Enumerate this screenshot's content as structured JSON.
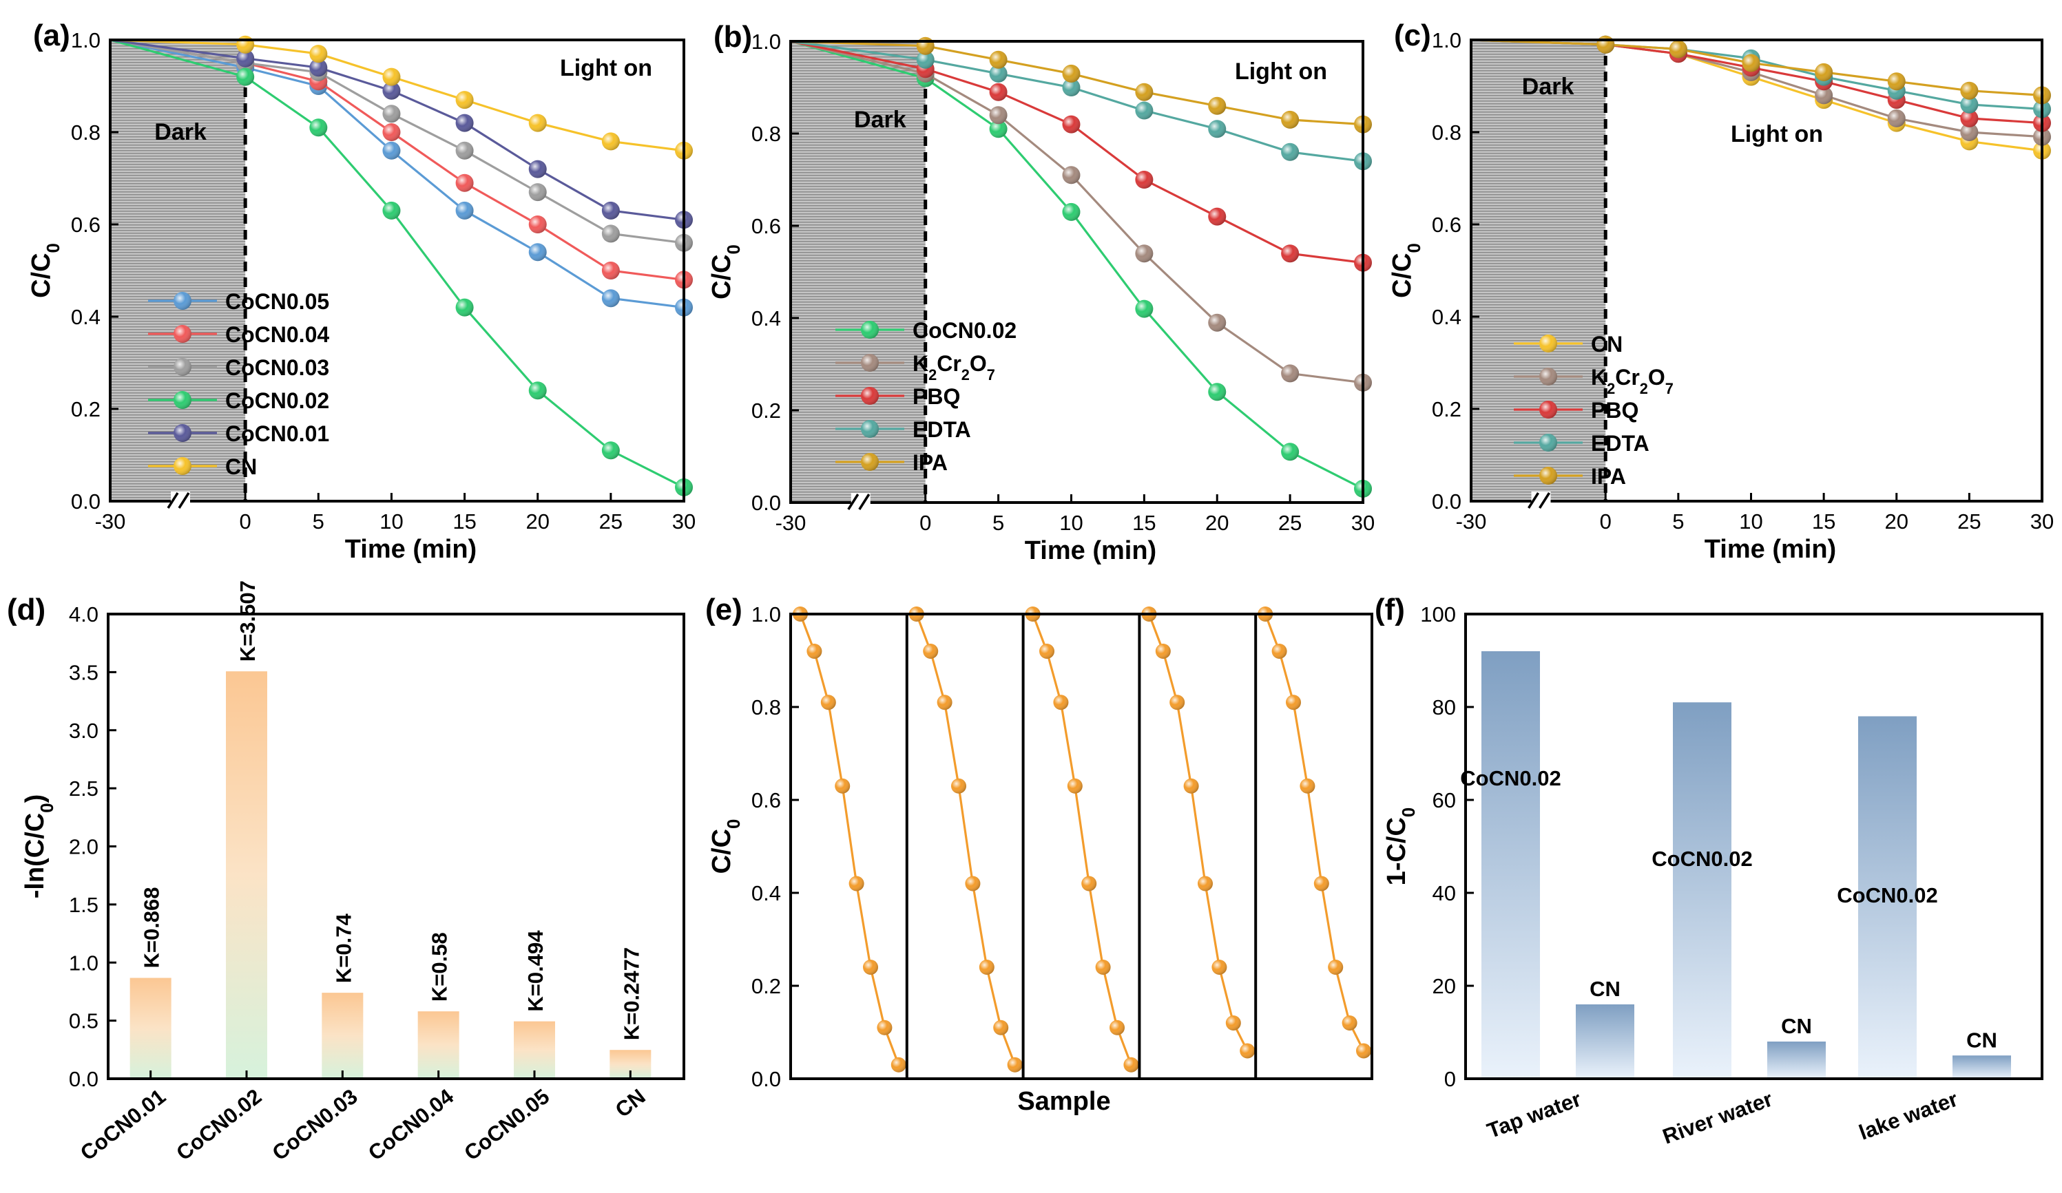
{
  "colors": {
    "CoCN0.05": "#5b9bd5",
    "CoCN0.04": "#f05a5a",
    "CoCN0.03": "#9e9e9e",
    "CoCN0.02": "#2ecc71",
    "CoCN0.01": "#5a5a9a",
    "CN": "#f6c22a",
    "K2Cr2O7": "#a48a7e",
    "PBQ": "#d93a3a",
    "EDTA": "#54a8a0",
    "IPA": "#d4a020",
    "orange": "#f39c2c",
    "dark": "#b0b0b0"
  },
  "chart_data": [
    {
      "id": "a",
      "type": "line",
      "panel_label": "(a)",
      "xlabel": "Time (min)",
      "ylabel": "C/C0",
      "ylim": [
        0,
        1.0
      ],
      "x_ticks": [
        "-30",
        "0",
        "5",
        "10",
        "15",
        "20",
        "25",
        "30"
      ],
      "y_ticks": [
        "0.0",
        "0.2",
        "0.4",
        "0.6",
        "0.8",
        "1.0"
      ],
      "dark_label": "Dark",
      "light_label": "Light on",
      "series": [
        {
          "name": "CoCN0.05",
          "key": "CoCN0.05",
          "x": [
            -30,
            0,
            5,
            10,
            15,
            20,
            25,
            30
          ],
          "values": [
            1.0,
            0.94,
            0.9,
            0.76,
            0.63,
            0.54,
            0.44,
            0.42
          ]
        },
        {
          "name": "CoCN0.04",
          "key": "CoCN0.04",
          "x": [
            -30,
            0,
            5,
            10,
            15,
            20,
            25,
            30
          ],
          "values": [
            1.0,
            0.95,
            0.91,
            0.8,
            0.69,
            0.6,
            0.5,
            0.48
          ]
        },
        {
          "name": "CoCN0.03",
          "key": "CoCN0.03",
          "x": [
            -30,
            0,
            5,
            10,
            15,
            20,
            25,
            30
          ],
          "values": [
            1.0,
            0.95,
            0.93,
            0.84,
            0.76,
            0.67,
            0.58,
            0.56
          ]
        },
        {
          "name": "CoCN0.02",
          "key": "CoCN0.02",
          "x": [
            -30,
            0,
            5,
            10,
            15,
            20,
            25,
            30
          ],
          "values": [
            1.0,
            0.92,
            0.81,
            0.63,
            0.42,
            0.24,
            0.11,
            0.03
          ]
        },
        {
          "name": "CoCN0.01",
          "key": "CoCN0.01",
          "x": [
            -30,
            0,
            5,
            10,
            15,
            20,
            25,
            30
          ],
          "values": [
            1.0,
            0.96,
            0.94,
            0.89,
            0.82,
            0.72,
            0.63,
            0.61
          ]
        },
        {
          "name": "CN",
          "key": "CN",
          "x": [
            -30,
            0,
            5,
            10,
            15,
            20,
            25,
            30
          ],
          "values": [
            1.0,
            0.99,
            0.97,
            0.92,
            0.87,
            0.82,
            0.78,
            0.76
          ]
        }
      ]
    },
    {
      "id": "b",
      "type": "line",
      "panel_label": "(b)",
      "xlabel": "Time (min)",
      "ylabel": "C/C0",
      "ylim": [
        0,
        1.0
      ],
      "x_ticks": [
        "-30",
        "0",
        "5",
        "10",
        "15",
        "20",
        "25",
        "30"
      ],
      "y_ticks": [
        "0.0",
        "0.2",
        "0.4",
        "0.6",
        "0.8",
        "1.0"
      ],
      "dark_label": "Dark",
      "light_label": "Light on",
      "series": [
        {
          "name": "CoCN0.02",
          "key": "CoCN0.02",
          "x": [
            -30,
            0,
            5,
            10,
            15,
            20,
            25,
            30
          ],
          "values": [
            1.0,
            0.92,
            0.81,
            0.63,
            0.42,
            0.24,
            0.11,
            0.03
          ]
        },
        {
          "name": "K2Cr2O7",
          "key": "K2Cr2O7",
          "x": [
            -30,
            0,
            5,
            10,
            15,
            20,
            25,
            30
          ],
          "values": [
            1.0,
            0.93,
            0.84,
            0.71,
            0.54,
            0.39,
            0.28,
            0.26
          ]
        },
        {
          "name": "PBQ",
          "key": "PBQ",
          "x": [
            -30,
            0,
            5,
            10,
            15,
            20,
            25,
            30
          ],
          "values": [
            1.0,
            0.94,
            0.89,
            0.82,
            0.7,
            0.62,
            0.54,
            0.52
          ]
        },
        {
          "name": "EDTA",
          "key": "EDTA",
          "x": [
            -30,
            0,
            5,
            10,
            15,
            20,
            25,
            30
          ],
          "values": [
            1.0,
            0.96,
            0.93,
            0.9,
            0.85,
            0.81,
            0.76,
            0.74
          ]
        },
        {
          "name": "IPA",
          "key": "IPA",
          "x": [
            -30,
            0,
            5,
            10,
            15,
            20,
            25,
            30
          ],
          "values": [
            1.0,
            0.99,
            0.96,
            0.93,
            0.89,
            0.86,
            0.83,
            0.82
          ]
        }
      ]
    },
    {
      "id": "c",
      "type": "line",
      "panel_label": "(c)",
      "xlabel": "Time (min)",
      "ylabel": "C/C0",
      "ylim": [
        0,
        1.0
      ],
      "x_ticks": [
        "-30",
        "0",
        "5",
        "10",
        "15",
        "20",
        "25",
        "30"
      ],
      "y_ticks": [
        "0.0",
        "0.2",
        "0.4",
        "0.6",
        "0.8",
        "1.0"
      ],
      "dark_label": "Dark",
      "light_label": "Light on",
      "series": [
        {
          "name": "CN",
          "key": "CN",
          "x": [
            -30,
            0,
            5,
            10,
            15,
            20,
            25,
            30
          ],
          "values": [
            1.0,
            0.99,
            0.97,
            0.92,
            0.87,
            0.82,
            0.78,
            0.76
          ]
        },
        {
          "name": "K2Cr2O7",
          "key": "K2Cr2O7",
          "x": [
            -30,
            0,
            5,
            10,
            15,
            20,
            25,
            30
          ],
          "values": [
            1.0,
            0.99,
            0.97,
            0.93,
            0.88,
            0.83,
            0.8,
            0.79
          ]
        },
        {
          "name": "PBQ",
          "key": "PBQ",
          "x": [
            -30,
            0,
            5,
            10,
            15,
            20,
            25,
            30
          ],
          "values": [
            1.0,
            0.99,
            0.97,
            0.94,
            0.91,
            0.87,
            0.83,
            0.82
          ]
        },
        {
          "name": "EDTA",
          "key": "EDTA",
          "x": [
            -30,
            0,
            5,
            10,
            15,
            20,
            25,
            30
          ],
          "values": [
            1.0,
            0.99,
            0.98,
            0.96,
            0.92,
            0.89,
            0.86,
            0.85
          ]
        },
        {
          "name": "IPA",
          "key": "IPA",
          "x": [
            -30,
            0,
            5,
            10,
            15,
            20,
            25,
            30
          ],
          "values": [
            1.0,
            0.99,
            0.98,
            0.95,
            0.93,
            0.91,
            0.89,
            0.88
          ]
        }
      ]
    },
    {
      "id": "d",
      "type": "bar",
      "panel_label": "(d)",
      "xlabel": "",
      "ylabel": "-ln(C/C0)",
      "ylim": [
        0,
        4.0
      ],
      "y_ticks": [
        "0.0",
        "0.5",
        "1.0",
        "1.5",
        "2.0",
        "2.5",
        "3.0",
        "3.5",
        "4.0"
      ],
      "categories": [
        "CoCN0.01",
        "CoCN0.02",
        "CoCN0.03",
        "CoCN0.04",
        "CoCN0.05",
        "CN"
      ],
      "values": [
        0.868,
        3.507,
        0.74,
        0.58,
        0.494,
        0.2477
      ],
      "labels": [
        "K=0.868",
        "K=3.507",
        "K=0.74",
        "K=0.58",
        "K=0.494",
        "K=0.2477"
      ]
    },
    {
      "id": "e",
      "type": "line",
      "panel_label": "(e)",
      "xlabel": "Sample",
      "ylabel": "C/C0",
      "ylim": [
        0,
        1.0
      ],
      "y_ticks": [
        "0.0",
        "0.2",
        "0.4",
        "0.6",
        "0.8",
        "1.0"
      ],
      "cycles": [
        [
          1.0,
          0.92,
          0.81,
          0.63,
          0.42,
          0.24,
          0.11,
          0.03
        ],
        [
          1.0,
          0.92,
          0.81,
          0.63,
          0.42,
          0.24,
          0.11,
          0.03
        ],
        [
          1.0,
          0.92,
          0.81,
          0.63,
          0.42,
          0.24,
          0.11,
          0.03
        ],
        [
          1.0,
          0.92,
          0.81,
          0.63,
          0.42,
          0.24,
          0.12,
          0.06
        ],
        [
          1.0,
          0.92,
          0.81,
          0.63,
          0.42,
          0.24,
          0.12,
          0.06
        ]
      ]
    },
    {
      "id": "f",
      "type": "bar",
      "panel_label": "(f)",
      "xlabel": "",
      "ylabel": "1-C/C0",
      "ylim": [
        0,
        100
      ],
      "y_ticks": [
        "0",
        "20",
        "40",
        "60",
        "80",
        "100"
      ],
      "categories": [
        "Tap water",
        "River water",
        "lake water"
      ],
      "series": [
        {
          "name": "CoCN0.02",
          "values": [
            92,
            81,
            78
          ]
        },
        {
          "name": "CN",
          "values": [
            16,
            8,
            5
          ]
        }
      ]
    }
  ]
}
